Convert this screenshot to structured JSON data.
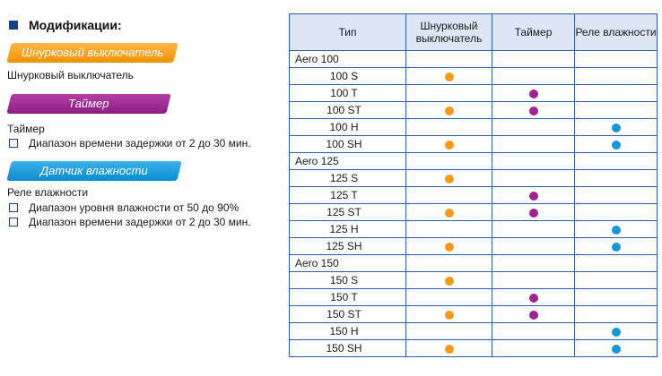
{
  "heading": "Модификации:",
  "ribbons": {
    "cord": "Шнурковый выключатель",
    "timer": "Таймер",
    "humidity": "Датчик влажности"
  },
  "sections": {
    "cord": {
      "title": "Шнурковый выключатель"
    },
    "timer": {
      "title": "Таймер",
      "bullets": [
        "Диапазон времени задержки от 2 до 30 мин."
      ]
    },
    "humidity": {
      "title": "Реле влажности",
      "bullets": [
        "Диапазон уровня влажности от 50 до 90%",
        "Диапазон времени задержки от 2 до 30 мин."
      ]
    }
  },
  "table": {
    "headers": [
      "Тип",
      "Шнурковый выключатель",
      "Таймер",
      "Реле влажности"
    ],
    "colors": {
      "cord": "#f39a1e",
      "timer": "#a3238e",
      "humidity": "#1597d9"
    },
    "rows": [
      {
        "type": "Aero 100",
        "group": true,
        "cord": false,
        "timer": false,
        "humidity": false
      },
      {
        "type": "100 S",
        "group": false,
        "cord": true,
        "timer": false,
        "humidity": false
      },
      {
        "type": "100 T",
        "group": false,
        "cord": false,
        "timer": true,
        "humidity": false
      },
      {
        "type": "100 ST",
        "group": false,
        "cord": true,
        "timer": true,
        "humidity": false
      },
      {
        "type": "100 H",
        "group": false,
        "cord": false,
        "timer": false,
        "humidity": true
      },
      {
        "type": "100 SH",
        "group": false,
        "cord": true,
        "timer": false,
        "humidity": true
      },
      {
        "type": "Aero 125",
        "group": true,
        "cord": false,
        "timer": false,
        "humidity": false
      },
      {
        "type": "125 S",
        "group": false,
        "cord": true,
        "timer": false,
        "humidity": false
      },
      {
        "type": "125 T",
        "group": false,
        "cord": false,
        "timer": true,
        "humidity": false
      },
      {
        "type": "125 ST",
        "group": false,
        "cord": true,
        "timer": true,
        "humidity": false
      },
      {
        "type": "125 H",
        "group": false,
        "cord": false,
        "timer": false,
        "humidity": true
      },
      {
        "type": "125 SH",
        "group": false,
        "cord": true,
        "timer": false,
        "humidity": true
      },
      {
        "type": "Aero 150",
        "group": true,
        "cord": false,
        "timer": false,
        "humidity": false
      },
      {
        "type": "150 S",
        "group": false,
        "cord": true,
        "timer": false,
        "humidity": false
      },
      {
        "type": "150 T",
        "group": false,
        "cord": false,
        "timer": true,
        "humidity": false
      },
      {
        "type": "150 ST",
        "group": false,
        "cord": true,
        "timer": true,
        "humidity": false
      },
      {
        "type": "150 H",
        "group": false,
        "cord": false,
        "timer": false,
        "humidity": true
      },
      {
        "type": "150 SH",
        "group": false,
        "cord": true,
        "timer": false,
        "humidity": true
      }
    ]
  }
}
